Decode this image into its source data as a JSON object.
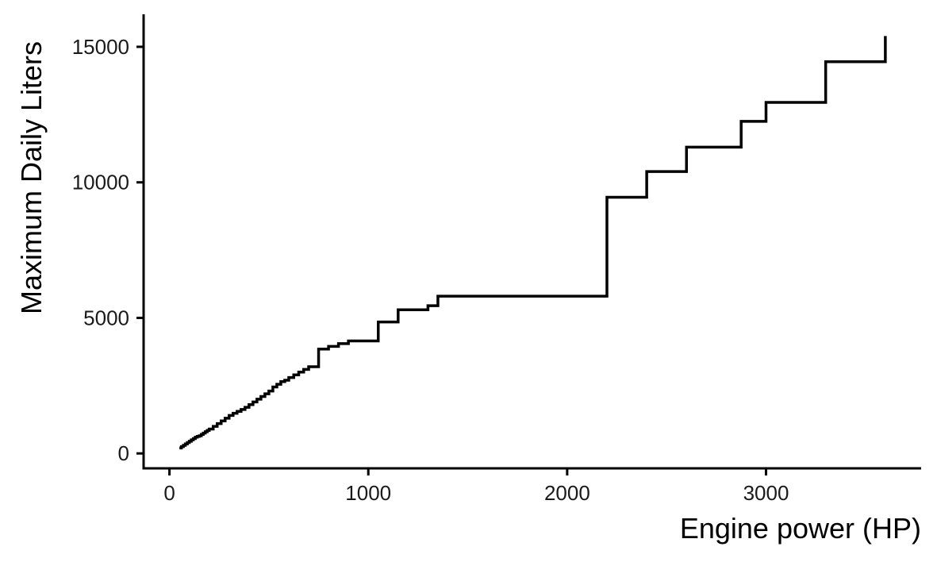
{
  "chart_data": {
    "type": "line",
    "line_style": "step",
    "title": "",
    "xlabel": "Engine power (HP)",
    "ylabel": "Maximum Daily Liters",
    "xlim": [
      -130,
      3780
    ],
    "ylim": [
      -550,
      16200
    ],
    "x_ticks": [
      0,
      1000,
      2000,
      3000
    ],
    "y_ticks": [
      0,
      5000,
      10000,
      15000
    ],
    "grid": false,
    "legend": "none",
    "line_color": "#000000",
    "series": [
      {
        "x": [
          50,
          60,
          70,
          80,
          90,
          100,
          110,
          120,
          130,
          140,
          150,
          160,
          170,
          180,
          190,
          200,
          220,
          240,
          260,
          280,
          300,
          320,
          340,
          360,
          380,
          400,
          420,
          440,
          460,
          480,
          500,
          520,
          540,
          560,
          580,
          600,
          625,
          650,
          675,
          700,
          750,
          800,
          850,
          900,
          1050,
          1150,
          1300,
          1350,
          2200,
          2400,
          2600,
          2875,
          3000,
          3300,
          3600
        ],
        "y": [
          200,
          250,
          300,
          350,
          400,
          450,
          500,
          550,
          600,
          630,
          650,
          700,
          750,
          800,
          850,
          900,
          1000,
          1100,
          1200,
          1300,
          1400,
          1480,
          1550,
          1620,
          1700,
          1800,
          1900,
          2000,
          2100,
          2200,
          2300,
          2450,
          2550,
          2650,
          2700,
          2800,
          2900,
          3000,
          3100,
          3200,
          3850,
          3950,
          4050,
          4150,
          4850,
          5300,
          5450,
          5800,
          9450,
          10400,
          11300,
          12250,
          12950,
          14450,
          15400
        ]
      }
    ]
  }
}
